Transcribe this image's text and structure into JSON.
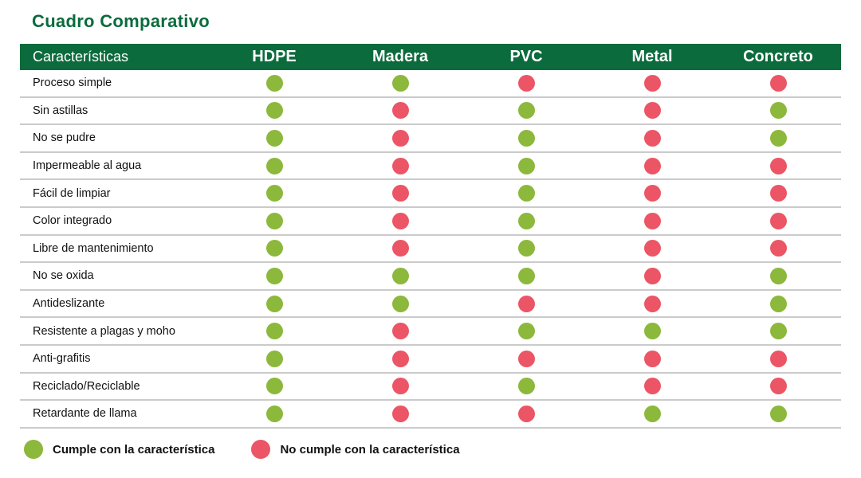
{
  "colors": {
    "header_bg": "#0B6B3D",
    "title_text": "#0B6B3D",
    "yes_dot": "#8CB83C",
    "no_dot": "#EC5565",
    "row_divider": "#CBCBCB"
  },
  "chart_data": {
    "type": "table",
    "title": "Cuadro Comparativo",
    "columns": [
      "Características",
      "HDPE",
      "Madera",
      "PVC",
      "Metal",
      "Concreto"
    ],
    "rows": [
      [
        "Proceso simple",
        "yes",
        "yes",
        "no",
        "no",
        "no"
      ],
      [
        "Sin astillas",
        "yes",
        "no",
        "yes",
        "no",
        "yes"
      ],
      [
        "No se pudre",
        "yes",
        "no",
        "yes",
        "no",
        "yes"
      ],
      [
        "Impermeable al agua",
        "yes",
        "no",
        "yes",
        "no",
        "no"
      ],
      [
        "Fácil de limpiar",
        "yes",
        "no",
        "yes",
        "no",
        "no"
      ],
      [
        "Color integrado",
        "yes",
        "no",
        "yes",
        "no",
        "no"
      ],
      [
        "Libre de mantenimiento",
        "yes",
        "no",
        "yes",
        "no",
        "no"
      ],
      [
        "No se oxida",
        "yes",
        "yes",
        "yes",
        "no",
        "yes"
      ],
      [
        "Antideslizante",
        "yes",
        "yes",
        "no",
        "no",
        "yes"
      ],
      [
        "Resistente a plagas y moho",
        "yes",
        "no",
        "yes",
        "yes",
        "yes"
      ],
      [
        "Anti-grafitis",
        "yes",
        "no",
        "no",
        "no",
        "no"
      ],
      [
        "Reciclado/Reciclable",
        "yes",
        "no",
        "yes",
        "no",
        "no"
      ],
      [
        "Retardante de llama",
        "yes",
        "no",
        "no",
        "yes",
        "yes"
      ]
    ],
    "legend": {
      "yes": "Cumple con la característica",
      "no": "No cumple con la característica"
    }
  }
}
